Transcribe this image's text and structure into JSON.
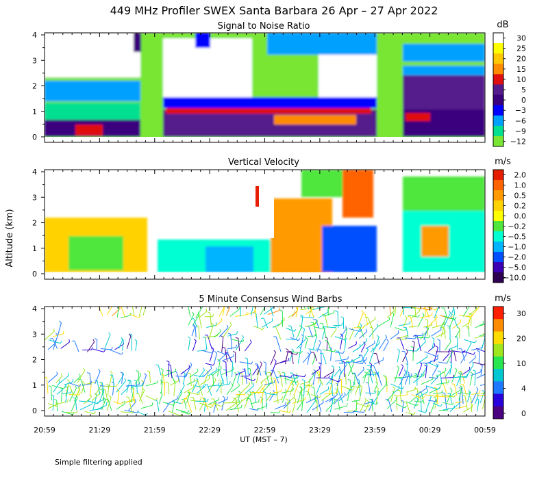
{
  "figure": {
    "title": "449 MHz Profiler SWEX Santa Barbara 26 Apr – 27 Apr 2022",
    "ylabel": "Altitude (km)",
    "xlabel": "UT  (MST – 7)",
    "note": "Simple filtering applied",
    "x_ticks": [
      "20:59",
      "21:29",
      "21:59",
      "22:29",
      "22:59",
      "23:29",
      "23:59",
      "00:29",
      "00:59"
    ]
  },
  "chart_data": [
    {
      "type": "heatmap",
      "title": "Signal to Noise Ratio",
      "ylim": [
        0,
        4
      ],
      "y_ticks": [
        "0",
        "1",
        "2",
        "3",
        "4"
      ],
      "colorbar": {
        "unit": "dB",
        "labels": [
          "30",
          "25",
          "20",
          "15",
          "10",
          "5",
          "0",
          "−3",
          "−6",
          "−9",
          "−12"
        ],
        "colors": [
          "#ffffff",
          "#ffff00",
          "#ffc800",
          "#ff8c00",
          "#e01010",
          "#551a8b",
          "#3a007d",
          "#0000ff",
          "#00a0ff",
          "#00e090",
          "#78e632"
        ]
      }
    },
    {
      "type": "heatmap",
      "title": "Vertical Velocity",
      "ylim": [
        0,
        4
      ],
      "y_ticks": [
        "0",
        "1",
        "2",
        "3",
        "4"
      ],
      "colorbar": {
        "unit": "m/s",
        "labels": [
          "2.0",
          "1.0",
          "0.5",
          "0.2",
          "0.0",
          "−0.2",
          "−0.5",
          "−1.0",
          "−2.0",
          "−5.0",
          "−10.0"
        ],
        "colors": [
          "#e61e00",
          "#ff6400",
          "#ff9b00",
          "#ffd200",
          "#ffff00",
          "#50e63c",
          "#00ffd2",
          "#00b4ff",
          "#0050ff",
          "#3c00b4",
          "#2d0050"
        ]
      }
    },
    {
      "type": "scatter",
      "title": "5 Minute Consensus Wind Barbs",
      "ylim": [
        0,
        4
      ],
      "y_ticks": [
        "0",
        "1",
        "2",
        "3",
        "4"
      ],
      "colorbar": {
        "unit": "m/s",
        "labels": [
          "30",
          "20",
          "10",
          "4",
          "0"
        ],
        "colors": [
          "#ff1e00",
          "#ff8c00",
          "#ffdc00",
          "#a0e61e",
          "#28e650",
          "#00c8d2",
          "#1e78ff",
          "#2800dc",
          "#4b0082"
        ]
      }
    }
  ]
}
